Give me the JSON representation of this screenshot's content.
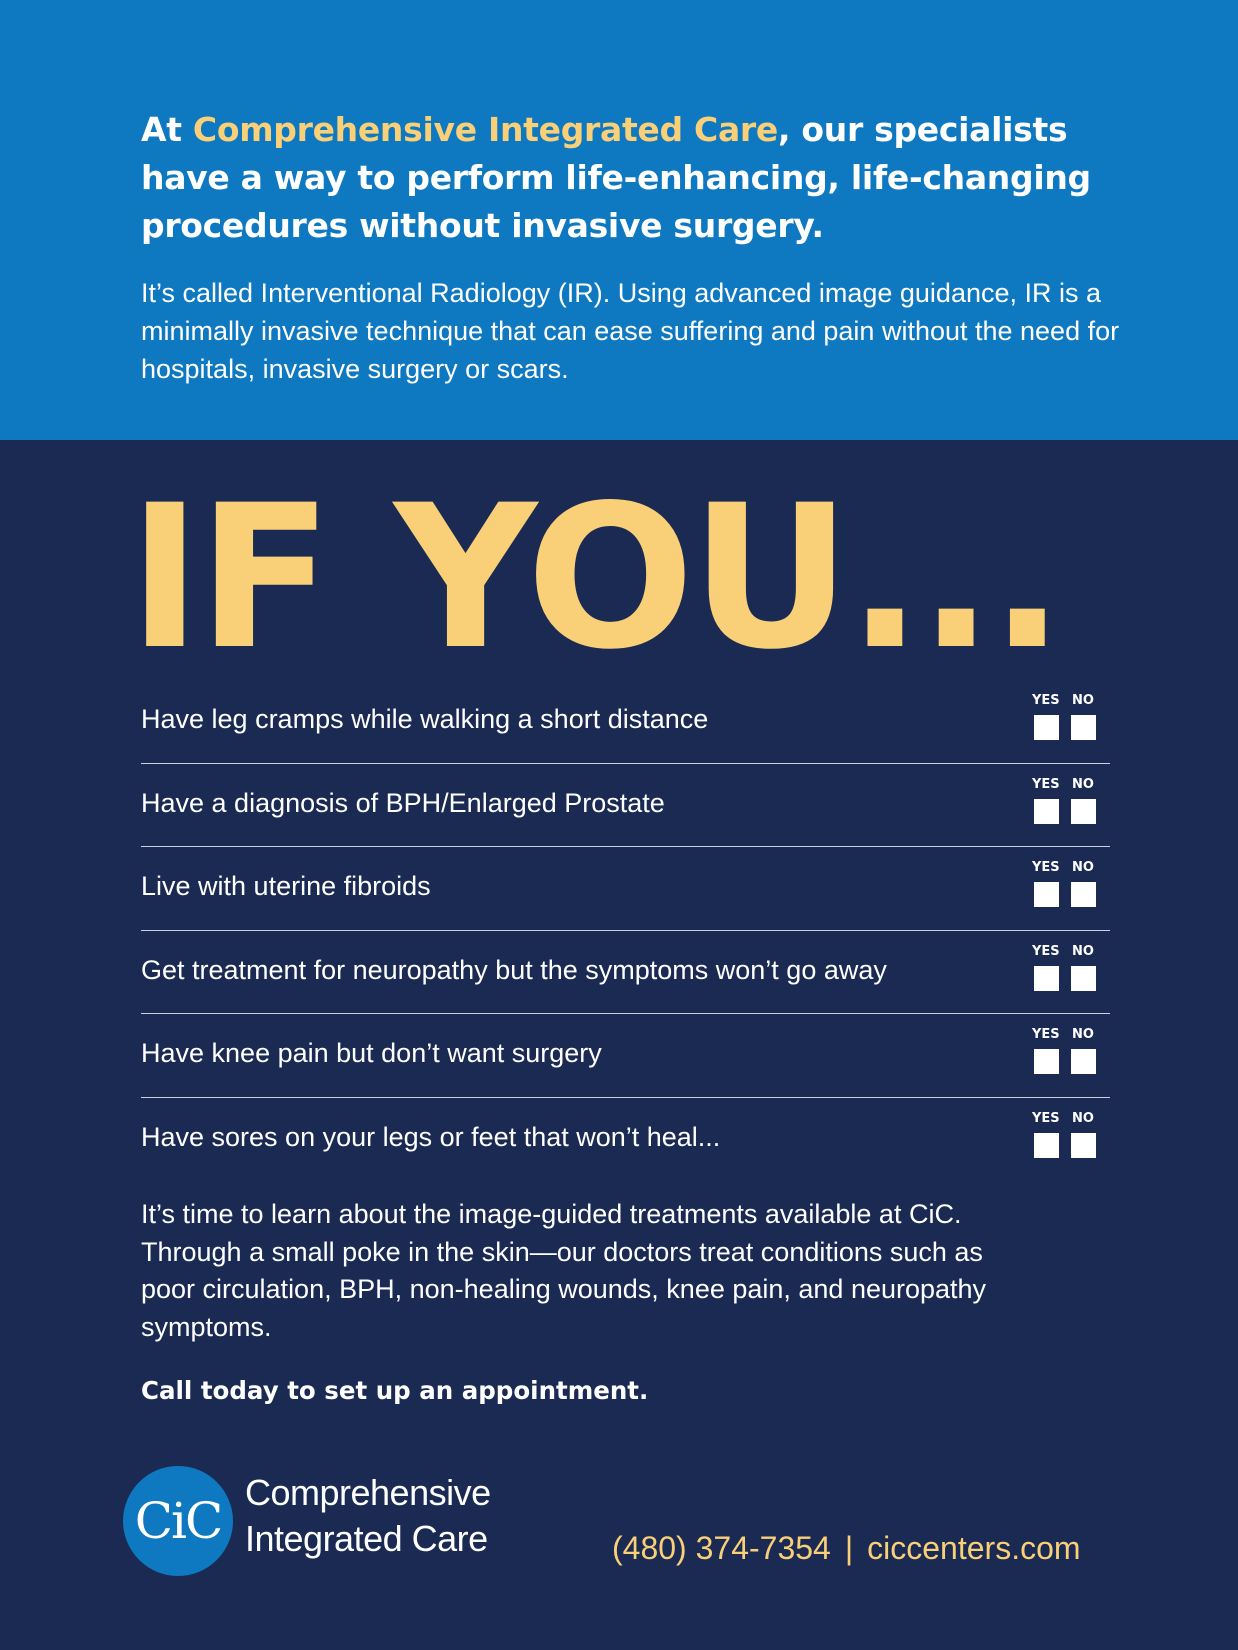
{
  "header": {
    "headline_pre": "At ",
    "headline_brand": "Comprehensive Integrated Care",
    "headline_post": ", our specialists have a way to perform life-enhancing, life-changing procedures without invasive surgery.",
    "intro": "It’s called Interventional Radiology (IR). Using advanced image guidance, IR is a minimally invasive technique that can ease suffering and pain without the need for hospitals, invasive surgery or scars."
  },
  "big_title": "IF YOU...",
  "checklist": {
    "yes_label": "YES",
    "no_label": "NO",
    "items": [
      {
        "text": "Have leg cramps while walking a short distance"
      },
      {
        "text": "Have a diagnosis of BPH/Enlarged Prostate"
      },
      {
        "text": "Live with uterine fibroids"
      },
      {
        "text": "Get treatment for neuropathy but the symptoms won’t go away"
      },
      {
        "text": "Have knee pain but don’t want surgery"
      },
      {
        "text": "Have sores on your legs or feet that won’t heal..."
      }
    ]
  },
  "body_copy": "It’s time to learn about the image-guided treatments available at CiC. Through a small poke in the skin—our doctors treat conditions such as poor circulation, BPH, non-healing wounds, knee pain, and neuropathy symptoms.",
  "cta": "Call today to set up an appointment.",
  "footer": {
    "logo_mark": "CiC",
    "logo_line1": "Comprehensive",
    "logo_line2": "Integrated Care",
    "phone": "(480) 374-7354",
    "separator": "|",
    "website": "ciccenters.com"
  },
  "colors": {
    "top_band": "#0e78c0",
    "background": "#1a2a53",
    "accent": "#f9cf78"
  }
}
